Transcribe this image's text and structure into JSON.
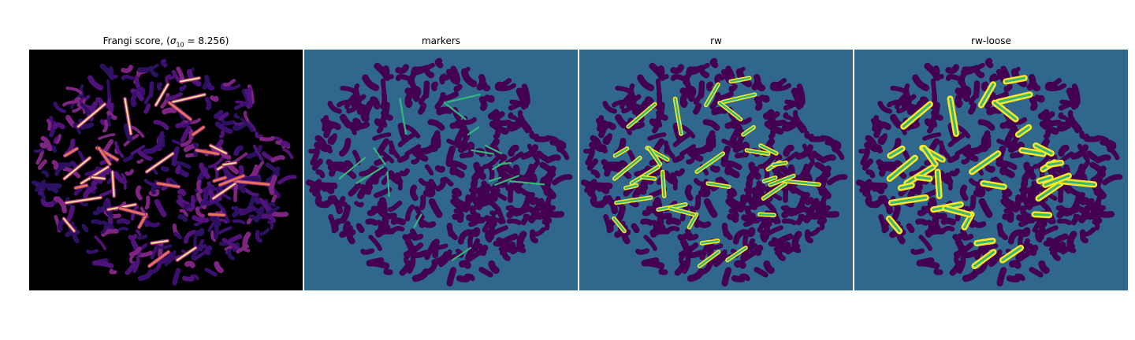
{
  "colors": {
    "figure_background": "#ffffff",
    "frangi_background": "#000000",
    "frangi_low": "#2c1160",
    "frangi_mid": "#7e2482",
    "frangi_high": "#e8715a",
    "frangi_peak": "#fcf5b4",
    "label_background": "#30678d",
    "label_tissue": "#440154",
    "label_marker": "#35b779",
    "label_vessel": "#fde725"
  },
  "panels": [
    {
      "id": "frangi",
      "title_prefix": "Frangi score, (",
      "sigma_symbol": "σ",
      "sigma_subscript": "10",
      "title_suffix": " = 8.256)",
      "colormap": "magma"
    },
    {
      "id": "markers",
      "title": "markers"
    },
    {
      "id": "rw",
      "title": "rw"
    },
    {
      "id": "rw-loose",
      "title": "rw-loose"
    }
  ]
}
